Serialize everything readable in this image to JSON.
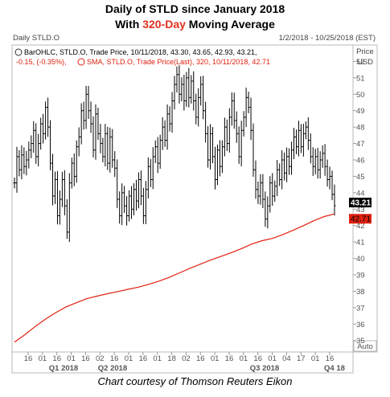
{
  "title": {
    "line1": "Daily of STLD since January 2018",
    "line2_highlight": "320-Day",
    "line2_rest": " Moving Average",
    "line2_prefix": "With "
  },
  "header": {
    "left": "Daily STLD.O",
    "right": "1/2/2018 - 10/25/2018 (EST)",
    "price": "Price",
    "currency": "USD"
  },
  "legend": {
    "bar_line1": "BarOHLC, STLD.O, Trade Price, 10/11/2018, 43.30, 43.65, 42.93, 43.21,",
    "bar_line2": "-0.15, (-0.35%),",
    "sma": "SMA, STLD.O, Trade Price(Last), 320, 10/11/2018, 42.71"
  },
  "auto_label": "Auto",
  "credit": "Chart courtesy of Thomson Reuters Eikon",
  "colors": {
    "bars": "#000000",
    "sma": "#e02010",
    "price_tag": "#000000",
    "sma_tag": "#e02010",
    "accent": "#e03020"
  },
  "chart_data": {
    "type": "line",
    "y_ticks": [
      35,
      36,
      37,
      38,
      39,
      40,
      41,
      42,
      43,
      44,
      45,
      46,
      47,
      48,
      49,
      50,
      51,
      52
    ],
    "ylim": [
      34.3,
      53.0
    ],
    "x_tick_labels": [
      "16",
      "01",
      "16",
      "01",
      "16",
      "02",
      "16",
      "01",
      "16",
      "01",
      "18",
      "02",
      "16",
      "01",
      "16",
      "01",
      "16",
      "01",
      "04",
      "17",
      "01",
      "16"
    ],
    "quarter_labels": [
      "Q1 2018",
      "Q2 2018",
      "Q3 2018",
      "Q4 18"
    ],
    "last_price": 43.21,
    "last_sma": 42.71,
    "price_tag_label": "43.21",
    "sma_tag_label": "42.71",
    "series": [
      {
        "name": "BarOHLC, STLD.O",
        "kind": "ohlc_closes",
        "values": [
          44.6,
          46.2,
          45.4,
          46.3,
          45.6,
          46.0,
          46.6,
          47.0,
          47.8,
          46.2,
          47.0,
          48.2,
          47.6,
          49.2,
          48.0,
          45.8,
          43.8,
          44.8,
          42.6,
          43.6,
          44.8,
          43.2,
          41.6,
          44.6,
          45.8,
          45.0,
          46.8,
          47.4,
          49.0,
          48.4,
          50.0,
          49.0,
          48.2,
          46.6,
          48.8,
          47.6,
          47.0,
          46.2,
          47.6,
          45.8,
          47.4,
          46.0,
          45.5,
          43.6,
          42.6,
          44.0,
          43.2,
          42.6,
          43.8,
          43.0,
          44.2,
          43.5,
          44.8,
          43.8,
          42.6,
          44.2,
          45.6,
          44.8,
          46.2,
          46.8,
          45.8,
          47.2,
          48.0,
          47.2,
          48.8,
          48.2,
          49.6,
          50.6,
          51.2,
          50.0,
          50.6,
          49.6,
          51.0,
          49.8,
          50.8,
          49.6,
          48.6,
          49.8,
          50.6,
          49.0,
          47.6,
          46.0,
          47.6,
          46.2,
          44.8,
          46.6,
          45.6,
          46.8,
          48.0,
          47.0,
          48.6,
          49.6,
          48.4,
          47.6,
          46.2,
          47.8,
          48.6,
          49.8,
          49.2,
          47.8,
          45.4,
          44.2,
          43.8,
          44.6,
          43.6,
          42.4,
          43.2,
          44.6,
          43.8,
          44.4,
          45.4,
          44.8,
          46.0,
          45.2,
          46.2,
          45.6,
          46.6,
          47.4,
          46.8,
          47.8,
          46.8,
          47.6,
          48.0,
          47.2,
          46.2,
          45.6,
          46.2,
          45.4,
          46.0,
          46.4,
          45.6,
          44.8,
          45.0,
          43.9,
          43.21
        ],
        "x_range": [
          0,
          1
        ]
      },
      {
        "name": "SMA, STLD.O, 320",
        "kind": "line",
        "values": [
          34.9,
          35.35,
          35.85,
          36.3,
          36.7,
          37.05,
          37.3,
          37.55,
          37.7,
          37.85,
          37.98,
          38.12,
          38.25,
          38.42,
          38.62,
          38.85,
          39.12,
          39.4,
          39.65,
          39.9,
          40.12,
          40.35,
          40.6,
          40.88,
          41.08,
          41.22,
          41.45,
          41.72,
          42.0,
          42.3,
          42.55,
          42.71
        ],
        "x_range": [
          0,
          1
        ]
      }
    ]
  }
}
